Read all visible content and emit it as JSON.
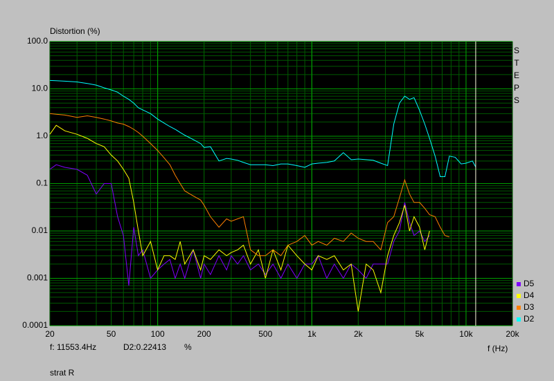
{
  "chart_data": {
    "type": "line",
    "y_label": "Distortion (%)",
    "x_label": "f (Hz)",
    "side_label": "STEPS",
    "footer": "strat R",
    "cursor": {
      "value": 11553.4,
      "label": "f: 11553.4Hz",
      "color": "#ffffe0"
    },
    "readout": {
      "label": "D2:0.22413",
      "unit": "%"
    },
    "log_x": true,
    "log_y": true,
    "grid": true,
    "legend": "lower right",
    "xlim": [
      20,
      20000
    ],
    "ylim": [
      0.0001,
      100
    ],
    "xticks": [
      20,
      50,
      {
        "value": 100,
        "label": "100"
      },
      200,
      500,
      {
        "value": 1000,
        "label": "1k"
      },
      {
        "value": 2000,
        "label": "2k"
      },
      {
        "value": 5000,
        "label": "5k"
      },
      {
        "value": 10000,
        "label": "10k"
      },
      {
        "value": 20000,
        "label": "20k"
      }
    ],
    "yticks": [
      {
        "value": 100,
        "label": "100.0"
      },
      {
        "value": 10,
        "label": "10.0"
      },
      {
        "value": 1,
        "label": "1.0"
      },
      0.1,
      0.01,
      0.001,
      0.0001
    ],
    "x": [
      20,
      22,
      25,
      30,
      35,
      40,
      45,
      50,
      55,
      60,
      65,
      70,
      75,
      80,
      90,
      100,
      110,
      120,
      130,
      140,
      150,
      170,
      190,
      200,
      220,
      250,
      280,
      300,
      330,
      360,
      400,
      450,
      500,
      560,
      630,
      700,
      800,
      900,
      1000,
      1100,
      1250,
      1400,
      1600,
      1800,
      2000,
      2250,
      2500,
      2800,
      3100,
      3400,
      3700,
      4000,
      4300,
      4600,
      5000,
      5400,
      5800,
      6300,
      6800,
      7300,
      7800,
      8500,
      9300,
      10000,
      11000,
      11553.4
    ],
    "series": [
      {
        "name": "D5",
        "color": "#8000ff",
        "values": [
          0.2,
          0.25,
          0.22,
          0.2,
          0.15,
          0.06,
          0.1,
          0.1,
          0.02,
          0.008,
          0.0007,
          0.012,
          0.003,
          0.004,
          0.001,
          0.0015,
          0.002,
          0.0025,
          0.001,
          0.002,
          0.001,
          0.004,
          0.001,
          0.002,
          0.0012,
          0.003,
          0.0015,
          0.003,
          0.002,
          0.003,
          0.0015,
          0.002,
          0.0012,
          0.002,
          0.001,
          0.002,
          0.001,
          0.002,
          0.002,
          0.003,
          0.001,
          0.002,
          0.001,
          0.002,
          0.0015,
          0.001,
          0.002,
          0.002,
          0.002,
          0.006,
          0.01,
          0.04,
          0.015,
          0.008,
          0.01,
          0.006,
          0.008,
          null,
          null,
          null,
          null,
          null,
          null,
          null,
          null,
          null
        ]
      },
      {
        "name": "D4",
        "color": "#ffff00",
        "values": [
          1.1,
          1.7,
          1.3,
          1.1,
          0.9,
          0.7,
          0.6,
          0.4,
          0.3,
          0.2,
          0.13,
          0.04,
          0.01,
          0.003,
          0.006,
          0.0015,
          0.003,
          0.003,
          0.0025,
          0.006,
          0.002,
          0.004,
          0.0015,
          0.003,
          0.0025,
          0.004,
          0.003,
          0.0035,
          0.004,
          0.005,
          0.002,
          0.004,
          0.001,
          0.004,
          0.0015,
          0.005,
          0.003,
          0.002,
          0.0015,
          0.003,
          0.0025,
          0.003,
          0.0015,
          0.002,
          0.0002,
          0.002,
          0.0015,
          0.0005,
          0.003,
          0.008,
          0.015,
          0.035,
          0.01,
          0.02,
          0.012,
          0.004,
          0.01,
          null,
          null,
          null,
          null,
          null,
          null,
          null,
          null,
          null
        ]
      },
      {
        "name": "D3",
        "color": "#ff8000",
        "values": [
          3,
          2.9,
          2.8,
          2.5,
          2.7,
          2.5,
          2.3,
          2.1,
          1.9,
          1.8,
          1.6,
          1.4,
          1.2,
          1.0,
          0.7,
          0.5,
          0.35,
          0.25,
          0.15,
          0.1,
          0.07,
          0.055,
          0.045,
          0.035,
          0.02,
          0.012,
          0.018,
          0.016,
          0.018,
          0.02,
          0.004,
          0.003,
          0.003,
          0.004,
          0.003,
          0.005,
          0.006,
          0.008,
          0.005,
          0.006,
          0.005,
          0.007,
          0.006,
          0.009,
          0.007,
          0.006,
          0.006,
          0.004,
          0.015,
          0.02,
          0.05,
          0.12,
          0.06,
          0.04,
          0.04,
          0.03,
          0.022,
          0.02,
          0.012,
          0.008,
          0.0075,
          null,
          null,
          null,
          null,
          null
        ]
      },
      {
        "name": "D2",
        "color": "#00ffff",
        "values": [
          15,
          14.8,
          14.5,
          14,
          13,
          12,
          10.5,
          9.5,
          8.5,
          7,
          6,
          5,
          4,
          3.6,
          3,
          2.3,
          1.9,
          1.6,
          1.4,
          1.2,
          1.05,
          0.85,
          0.7,
          0.58,
          0.6,
          0.3,
          0.34,
          0.33,
          0.31,
          0.28,
          0.25,
          0.25,
          0.25,
          0.24,
          0.26,
          0.26,
          0.24,
          0.22,
          0.26,
          0.27,
          0.28,
          0.3,
          0.45,
          0.32,
          0.33,
          0.32,
          0.31,
          0.27,
          0.24,
          1.8,
          5,
          7,
          6,
          6.5,
          3.5,
          1.8,
          0.9,
          0.38,
          0.14,
          0.14,
          0.38,
          0.36,
          0.26,
          0.27,
          0.3,
          0.22413
        ]
      }
    ]
  }
}
